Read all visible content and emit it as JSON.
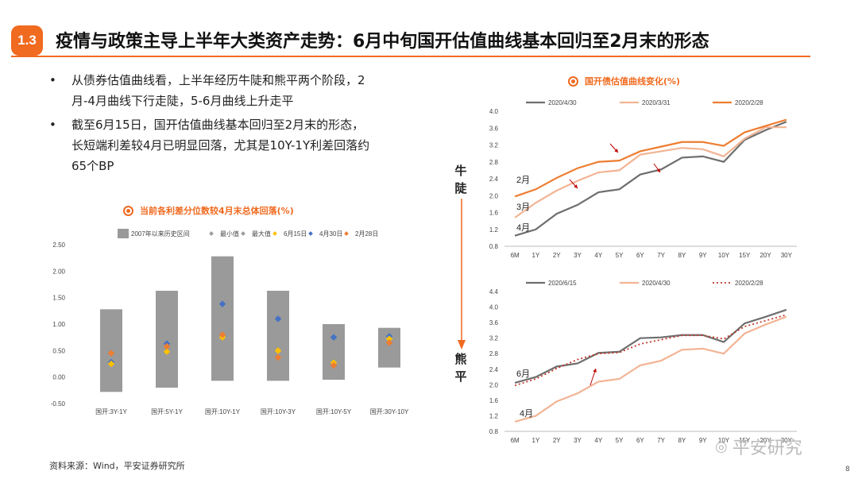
{
  "header": {
    "badge": "1.3",
    "title": "疫情与政策主导上半年大类资产走势：6月中旬国开估值曲线基本回归至2月末的形态"
  },
  "bullets": [
    {
      "marker": "•",
      "line1": "从债券估值曲线看，上半年经历牛陡和熊平两个阶段，2",
      "line2": "月-4月曲线下行走陡，5-6月曲线上升走平"
    },
    {
      "marker": "•",
      "line1": "截至6月15日，国开估值曲线基本回归至2月末的形态，",
      "line2": "长短端利差较4月已明显回落，尤其是10Y-1Y利差回落约",
      "line3": "65个BP"
    }
  ],
  "side_labels": {
    "bull": [
      "牛",
      "陡"
    ],
    "bear": [
      "熊",
      "平"
    ]
  },
  "colors": {
    "accent": "#f06a1f",
    "bar": "#9a9a9a",
    "dark": "#6e6e6e",
    "light": "#f2b494",
    "orange": "#ed7d31",
    "blue": "#4472c4",
    "gold": "#ffc000",
    "red": "#c00000"
  },
  "chart_data": [
    {
      "id": "spread",
      "type": "bar",
      "title": "当前各利差分位数较4月末总体回落(%)",
      "legend": [
        "2007年以来历史区间",
        "最小值",
        "最大值",
        "6月15日",
        "4月30日",
        "2月28日"
      ],
      "categories": [
        "国开:3Y-1Y",
        "国开:5Y-1Y",
        "国开:10Y-1Y",
        "国开:10Y-3Y",
        "国开:10Y-5Y",
        "国开:30Y-10Y"
      ],
      "range_low": [
        -0.28,
        -0.2,
        -0.07,
        -0.07,
        -0.05,
        0.18
      ],
      "range_high": [
        1.28,
        1.63,
        2.28,
        1.63,
        1.0,
        0.93
      ],
      "jun15": [
        0.25,
        0.48,
        0.75,
        0.5,
        0.27,
        0.72
      ],
      "apr30": [
        0.28,
        0.63,
        1.38,
        1.1,
        0.75,
        0.77
      ],
      "feb28": [
        0.45,
        0.58,
        0.8,
        0.37,
        0.22,
        0.65
      ],
      "ylim": [
        -0.5,
        2.5
      ],
      "yticks": [
        "2.50",
        "2.00",
        "1.50",
        "1.00",
        "0.50",
        "0.00",
        "-0.50"
      ]
    },
    {
      "id": "curve_bull",
      "type": "line",
      "title": "国开债估值曲线变化(%)",
      "categories": [
        "6M",
        "1Y",
        "2Y",
        "3Y",
        "4Y",
        "5Y",
        "6Y",
        "7Y",
        "8Y",
        "9Y",
        "10Y",
        "15Y",
        "20Y",
        "30Y"
      ],
      "series": [
        {
          "name": "2020/4/30",
          "values": [
            1.05,
            1.2,
            1.57,
            1.78,
            2.08,
            2.15,
            2.5,
            2.62,
            2.9,
            2.93,
            2.8,
            3.32,
            3.55,
            3.75
          ]
        },
        {
          "name": "2020/3/31",
          "values": [
            1.48,
            1.83,
            2.12,
            2.35,
            2.55,
            2.6,
            2.97,
            3.05,
            3.13,
            3.1,
            2.93,
            3.35,
            3.62,
            3.62
          ]
        },
        {
          "name": "2020/2/28",
          "values": [
            1.98,
            2.15,
            2.42,
            2.65,
            2.8,
            2.83,
            3.05,
            3.16,
            3.27,
            3.27,
            3.18,
            3.5,
            3.65,
            3.8
          ]
        }
      ],
      "ylim": [
        0.8,
        4.0
      ],
      "yticks": [
        "4.0",
        "3.6",
        "3.2",
        "2.8",
        "2.4",
        "2.0",
        "1.6",
        "1.2",
        "0.8"
      ],
      "annotations": [
        "2月",
        "3月",
        "4月"
      ]
    },
    {
      "id": "curve_bear",
      "type": "line",
      "categories": [
        "6M",
        "1Y",
        "2Y",
        "3Y",
        "4Y",
        "5Y",
        "6Y",
        "7Y",
        "8Y",
        "9Y",
        "10Y",
        "15Y",
        "20Y",
        "30Y"
      ],
      "series": [
        {
          "name": "2020/6/15",
          "values": [
            2.05,
            2.2,
            2.47,
            2.55,
            2.82,
            2.85,
            3.2,
            3.22,
            3.28,
            3.28,
            3.1,
            3.58,
            3.75,
            3.93
          ]
        },
        {
          "name": "2020/4/30",
          "values": [
            1.05,
            1.2,
            1.57,
            1.78,
            2.08,
            2.15,
            2.5,
            2.62,
            2.9,
            2.93,
            2.8,
            3.32,
            3.55,
            3.75
          ]
        },
        {
          "name": "2020/2/28",
          "values": [
            1.98,
            2.15,
            2.42,
            2.65,
            2.8,
            2.83,
            3.05,
            3.16,
            3.27,
            3.27,
            3.18,
            3.5,
            3.65,
            3.8
          ]
        }
      ],
      "ylim": [
        0.8,
        4.4
      ],
      "yticks": [
        "4.4",
        "4.0",
        "3.6",
        "3.2",
        "2.8",
        "2.4",
        "2.0",
        "1.6",
        "1.2",
        "0.8"
      ],
      "annotations": [
        "6月",
        "4月"
      ]
    }
  ],
  "footer": {
    "source": "资料来源：Wind，平安证券研究所",
    "page": "8",
    "watermark": "平安研究"
  }
}
